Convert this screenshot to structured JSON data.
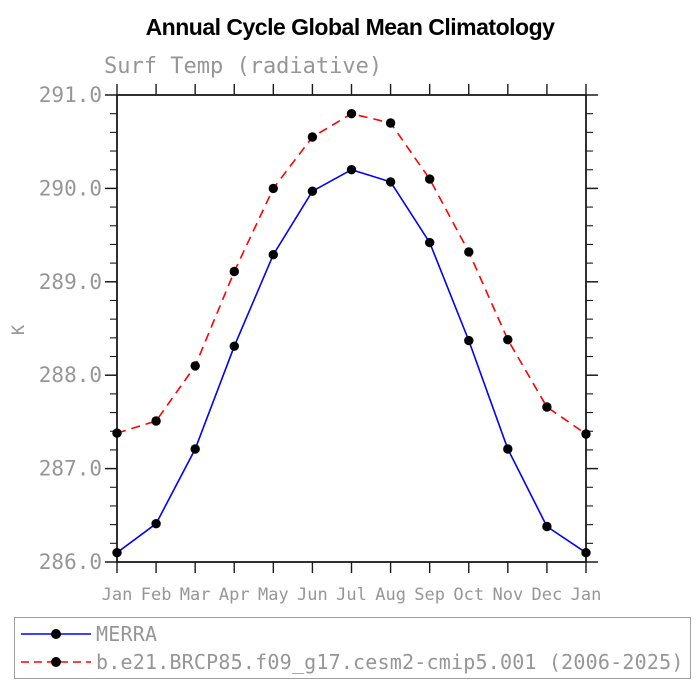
{
  "title": "Annual Cycle Global Mean Climatology",
  "subtitle": "Surf Temp (radiative)",
  "y_axis_label": "K",
  "colors": {
    "title_text": "#000000",
    "plot_text_gray": "#969696",
    "axis": "#1a1a1a",
    "legend_border": "#a0a0a0",
    "marker": "#000000",
    "merra_line": "#0000ff",
    "cesm_line": "#ff0000"
  },
  "legend": {
    "items": [
      {
        "label": "MERRA"
      },
      {
        "label": "b.e21.BRCP85.f09_g17.cesm2-cmip5.001 (2006-2025)"
      }
    ]
  },
  "chart_data": {
    "type": "line",
    "title": "Annual Cycle Global Mean Climatology",
    "subtitle": "Surf Temp (radiative)",
    "xlabel": "",
    "ylabel": "K",
    "categories": [
      "Jan",
      "Feb",
      "Mar",
      "Apr",
      "May",
      "Jun",
      "Jul",
      "Aug",
      "Sep",
      "Oct",
      "Nov",
      "Dec",
      "Jan"
    ],
    "ylim": [
      286.0,
      291.0
    ],
    "y_major_step": 1.0,
    "y_minor_step": 0.2,
    "y_tick_labels": [
      "286.0",
      "287.0",
      "288.0",
      "289.0",
      "290.0",
      "291.0"
    ],
    "grid": false,
    "legend_position": "bottom-box",
    "series": [
      {
        "name": "MERRA",
        "color": "#0000ff",
        "line_style": "solid",
        "marker": "filled-circle",
        "marker_color": "#000000",
        "values": [
          286.1,
          286.41,
          287.21,
          288.31,
          289.29,
          289.97,
          290.2,
          290.07,
          289.42,
          288.37,
          287.21,
          286.38,
          286.1
        ]
      },
      {
        "name": "b.e21.BRCP85.f09_g17.cesm2-cmip5.001 (2006-2025)",
        "color": "#ff0000",
        "line_style": "dashed",
        "marker": "filled-circle",
        "marker_color": "#000000",
        "values": [
          287.38,
          287.51,
          288.1,
          289.11,
          290.0,
          290.55,
          290.8,
          290.7,
          290.1,
          289.32,
          288.38,
          287.66,
          287.37
        ]
      }
    ]
  }
}
